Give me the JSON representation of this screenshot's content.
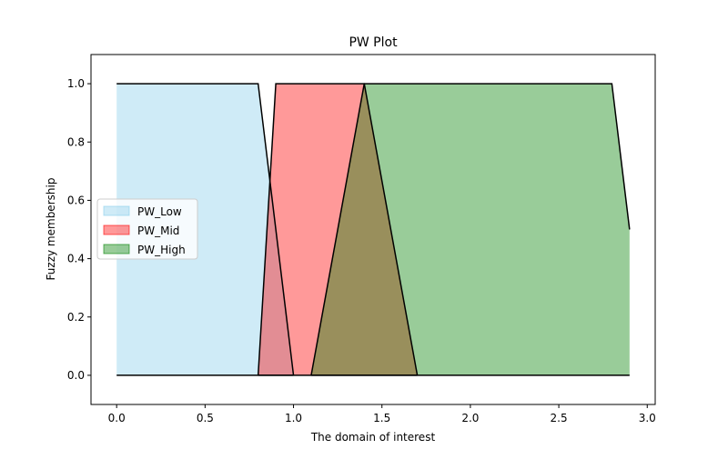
{
  "chart_data": {
    "type": "area",
    "title": "PW Plot",
    "xlabel": "The domain of interest",
    "ylabel": "Fuzzy membership",
    "xlim": [
      -0.145,
      3.045
    ],
    "ylim": [
      -0.1,
      1.1
    ],
    "xticks": [
      "0.0",
      "0.5",
      "1.0",
      "1.5",
      "2.0",
      "2.5",
      "3.0"
    ],
    "xtick_values": [
      0.0,
      0.5,
      1.0,
      1.5,
      2.0,
      2.5,
      3.0
    ],
    "yticks": [
      "0.0",
      "0.2",
      "0.4",
      "0.6",
      "0.8",
      "1.0"
    ],
    "ytick_values": [
      0.0,
      0.2,
      0.4,
      0.6,
      0.8,
      1.0
    ],
    "legend_position": "center-left",
    "grid": false,
    "series": [
      {
        "name": "PW_Low",
        "color": "#87CEEB",
        "alpha": 0.4,
        "x": [
          0.0,
          0.8,
          1.0
        ],
        "y": [
          1.0,
          1.0,
          0.0
        ]
      },
      {
        "name": "PW_Mid",
        "color": "#FF0000",
        "alpha": 0.4,
        "x": [
          0.8,
          0.9,
          1.4,
          1.7
        ],
        "y": [
          0.0,
          1.0,
          1.0,
          0.0
        ]
      },
      {
        "name": "PW_High",
        "color": "#008000",
        "alpha": 0.4,
        "x": [
          1.1,
          1.4,
          2.8,
          2.9
        ],
        "y": [
          0.0,
          1.0,
          1.0,
          0.5
        ]
      }
    ]
  }
}
